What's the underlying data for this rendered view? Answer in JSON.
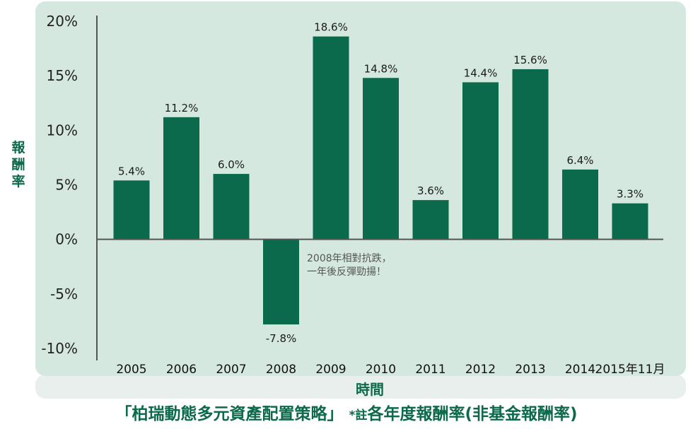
{
  "chart_data": {
    "type": "bar",
    "categories": [
      "2005",
      "2006",
      "2007",
      "2008",
      "2009",
      "2010",
      "2011",
      "2012",
      "2013",
      "2014",
      "2015年11月"
    ],
    "values": [
      5.4,
      11.2,
      6.0,
      -7.8,
      18.6,
      14.8,
      3.6,
      14.4,
      15.6,
      6.4,
      3.3
    ],
    "data_labels": [
      "5.4%",
      "11.2%",
      "6.0%",
      "-7.8%",
      "18.6%",
      "14.8%",
      "3.6%",
      "14.4%",
      "15.6%",
      "6.4%",
      "3.3%"
    ],
    "yticks": [
      20,
      15,
      10,
      5,
      0,
      -5,
      -10
    ],
    "ytick_labels": [
      "20%",
      "15%",
      "10%",
      "5%",
      "0%",
      "-5%",
      "-10%"
    ],
    "ylim": [
      -10,
      20
    ],
    "ylabel": "報酬率",
    "xlabel": "時間",
    "annotation": [
      "2008年相對抗跌，",
      "一年後反彈勁揚！"
    ],
    "grid": false,
    "colors": {
      "bar": "#0b6a4b",
      "panel": "#d5e8e0",
      "strip": "#e9efec",
      "axis": "#555555",
      "text_accent": "#0c6a4a"
    }
  },
  "caption": {
    "main": "「柏瑞動態多元資產配置策略」",
    "note": "*註",
    "rest": "各年度報酬率(非基金報酬率)"
  }
}
